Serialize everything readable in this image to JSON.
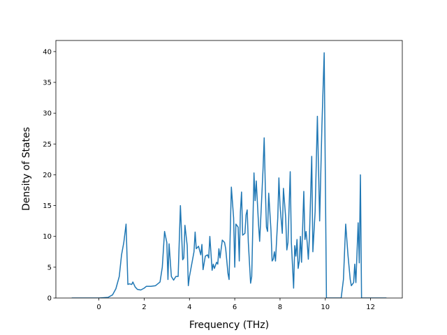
{
  "chart_data": {
    "type": "line",
    "xlabel": "Frequency (THz)",
    "ylabel": "Density of States",
    "color": "#1f77b4",
    "xlim": [
      -1.9,
      13.4
    ],
    "ylim": [
      0,
      41.8
    ],
    "xticks": [
      0,
      2,
      4,
      6,
      8,
      10,
      12
    ],
    "yticks": [
      0,
      5,
      10,
      15,
      20,
      25,
      30,
      35,
      40
    ],
    "x": [
      -1.2,
      0,
      0.4,
      0.6,
      0.75,
      0.9,
      1.0,
      1.1,
      1.2,
      1.28,
      1.35,
      1.45,
      1.5,
      1.6,
      1.7,
      1.85,
      2.0,
      2.1,
      2.3,
      2.5,
      2.6,
      2.7,
      2.8,
      2.9,
      3.0,
      3.05,
      3.1,
      3.2,
      3.3,
      3.4,
      3.5,
      3.6,
      3.7,
      3.75,
      3.8,
      3.9,
      3.95,
      4.0,
      4.1,
      4.2,
      4.25,
      4.3,
      4.4,
      4.5,
      4.55,
      4.6,
      4.7,
      4.8,
      4.85,
      4.9,
      5.0,
      5.05,
      5.1,
      5.2,
      5.25,
      5.3,
      5.35,
      5.45,
      5.55,
      5.6,
      5.7,
      5.75,
      5.85,
      5.95,
      6.0,
      6.05,
      6.15,
      6.2,
      6.25,
      6.3,
      6.35,
      6.45,
      6.5,
      6.55,
      6.6,
      6.7,
      6.75,
      6.85,
      6.9,
      6.95,
      7.05,
      7.1,
      7.15,
      7.25,
      7.3,
      7.35,
      7.4,
      7.45,
      7.5,
      7.6,
      7.65,
      7.7,
      7.75,
      7.8,
      7.9,
      7.95,
      8.0,
      8.1,
      8.15,
      8.25,
      8.3,
      8.35,
      8.45,
      8.5,
      8.6,
      8.65,
      8.7,
      8.75,
      8.8,
      8.85,
      8.9,
      8.95,
      9.05,
      9.1,
      9.15,
      9.2,
      9.25,
      9.3,
      9.4,
      9.45,
      9.55,
      9.65,
      9.75,
      9.85,
      9.95,
      10.05,
      10.7,
      10.8,
      10.9,
      11.0,
      11.1,
      11.15,
      11.25,
      11.3,
      11.35,
      11.45,
      11.5,
      11.55,
      11.6,
      12.7
    ],
    "values": [
      0,
      0,
      0.1,
      0.5,
      1.5,
      3.5,
      7,
      9,
      12,
      2.2,
      2.3,
      2.2,
      2.6,
      1.8,
      1.4,
      1.3,
      1.6,
      1.9,
      1.9,
      2.0,
      2.3,
      2.6,
      5,
      10.8,
      9,
      3,
      8.8,
      3.5,
      2.9,
      3.5,
      3.5,
      15,
      6.2,
      6.5,
      11.8,
      8.5,
      2,
      3.5,
      5.5,
      7.5,
      10.7,
      8,
      8.4,
      7,
      8.7,
      4.6,
      6.8,
      7,
      6.5,
      10,
      4.5,
      5.5,
      4.8,
      5.8,
      5.5,
      8,
      6.5,
      9.4,
      9,
      8,
      4,
      3,
      18,
      13,
      5,
      12,
      11.5,
      6,
      14,
      17.2,
      10.2,
      10.5,
      13.5,
      14.3,
      9,
      2.4,
      3.5,
      20.3,
      15.8,
      19,
      12,
      9.2,
      13,
      21,
      26,
      18,
      11.5,
      10.8,
      17,
      11,
      6,
      6.3,
      7.5,
      6,
      13,
      19.5,
      15,
      10.5,
      17.8,
      13,
      7.8,
      9,
      20.5,
      9,
      1.6,
      8.5,
      6.8,
      9.5,
      4.8,
      6,
      10,
      5.8,
      17.3,
      9.5,
      10.8,
      9,
      6.3,
      10,
      23,
      7.5,
      14,
      29.5,
      12.5,
      28,
      39.8,
      0,
      0,
      3,
      12,
      7,
      3,
      2,
      2.5,
      5.5,
      2.5,
      12.2,
      5.7,
      20,
      0,
      0
    ]
  }
}
